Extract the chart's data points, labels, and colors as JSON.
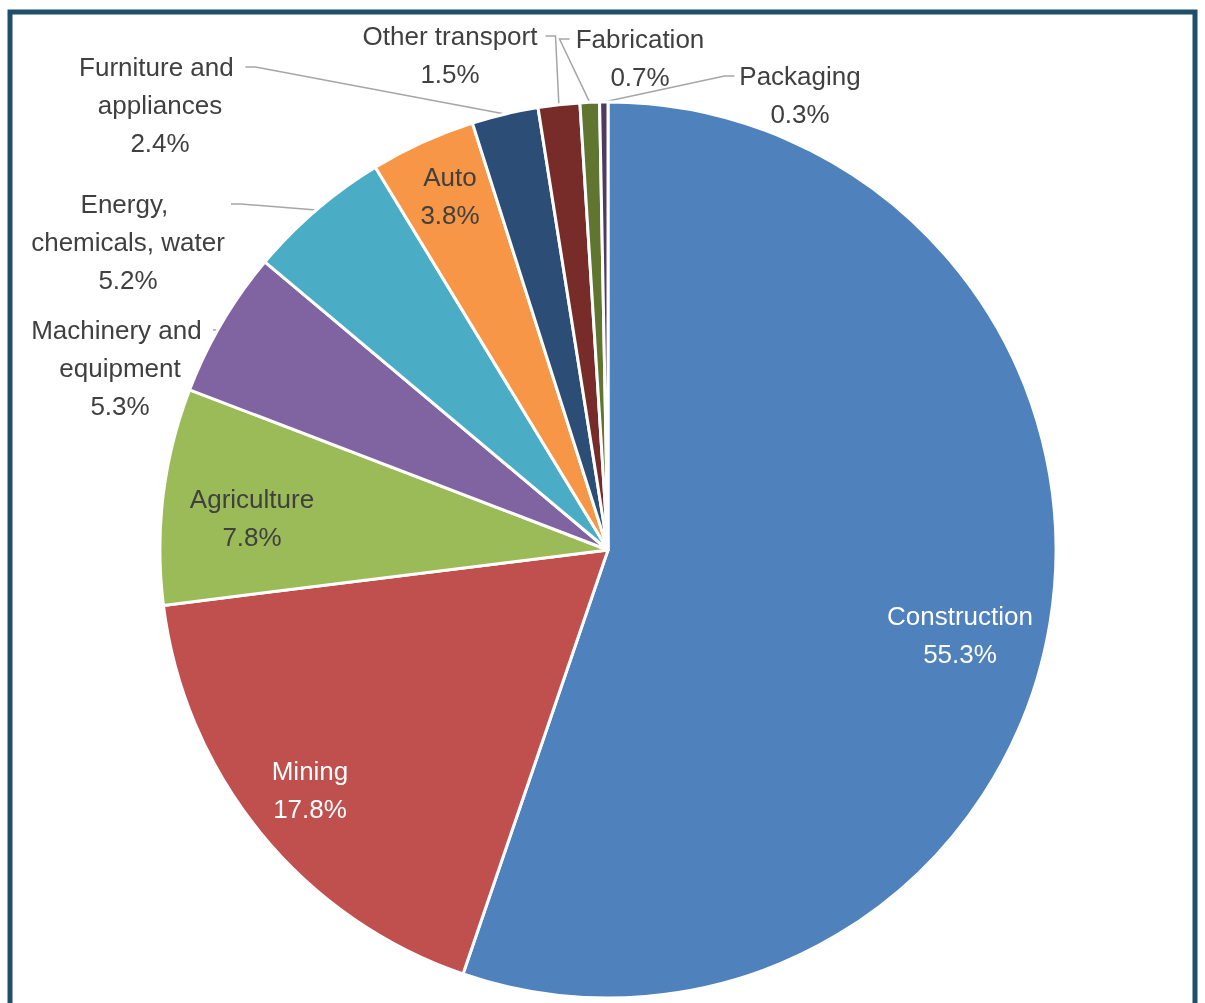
{
  "chart_data": {
    "type": "pie",
    "categories": [
      "Construction",
      "Mining",
      "Agriculture",
      "Machinery and equipment",
      "Energy, chemicals, water",
      "Auto",
      "Furniture and appliances",
      "Other transport",
      "Fabrication",
      "Packaging"
    ],
    "values": [
      55.3,
      17.8,
      7.8,
      5.3,
      5.2,
      3.8,
      2.4,
      1.5,
      0.7,
      0.3
    ],
    "value_labels": [
      "55.3%",
      "17.8%",
      "7.8%",
      "5.3%",
      "5.2%",
      "3.8%",
      "2.4%",
      "1.5%",
      "0.7%",
      "0.3%"
    ],
    "colors": [
      "#4f81bd",
      "#c0504d",
      "#9bbb59",
      "#8064a2",
      "#4bacc6",
      "#f79646",
      "#2c4d75",
      "#772c2a",
      "#5f7530",
      "#4d3b62"
    ],
    "legend": false
  }
}
